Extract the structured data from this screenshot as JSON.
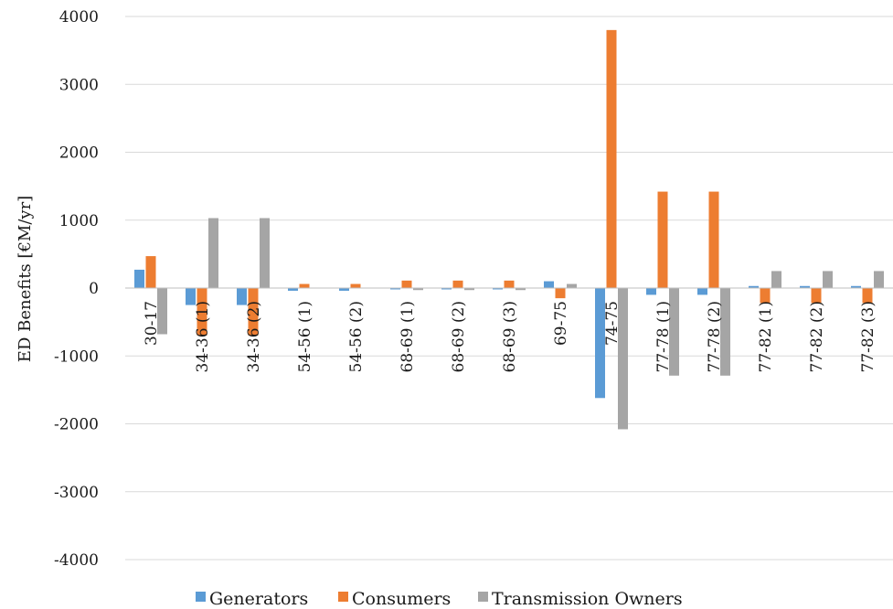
{
  "chart_data": {
    "type": "bar",
    "title": "",
    "xlabel": "",
    "ylabel": "ED Benefits [€M/yr]",
    "ylim": [
      -4000,
      4000
    ],
    "yticks": [
      4000,
      3000,
      2000,
      1000,
      0,
      -1000,
      -2000,
      -3000,
      -4000
    ],
    "grid": true,
    "legend_position": "bottom",
    "categories": [
      "30-17",
      "34-36 (1)",
      "34-36 (2)",
      "54-56 (1)",
      "54-56 (2)",
      "68-69 (1)",
      "68-69 (2)",
      "68-69 (3)",
      "69-75",
      "74-75",
      "77-78 (1)",
      "77-78 (2)",
      "77-82 (1)",
      "77-82 (2)",
      "77-82 (3)"
    ],
    "series": [
      {
        "name": "Generators",
        "color": "#5B9BD5",
        "values": [
          270,
          -250,
          -250,
          -40,
          -40,
          -20,
          -20,
          -20,
          100,
          -1620,
          -100,
          -100,
          30,
          30,
          30
        ]
      },
      {
        "name": "Consumers",
        "color": "#ED7D31",
        "values": [
          470,
          -700,
          -700,
          60,
          60,
          110,
          110,
          110,
          -150,
          3800,
          1420,
          1420,
          -220,
          -220,
          -220
        ]
      },
      {
        "name": "Transmission Owners",
        "color": "#A5A5A5",
        "values": [
          -680,
          1030,
          1030,
          0,
          0,
          -30,
          -30,
          -30,
          60,
          -2080,
          -1290,
          -1290,
          250,
          250,
          250
        ]
      }
    ]
  }
}
